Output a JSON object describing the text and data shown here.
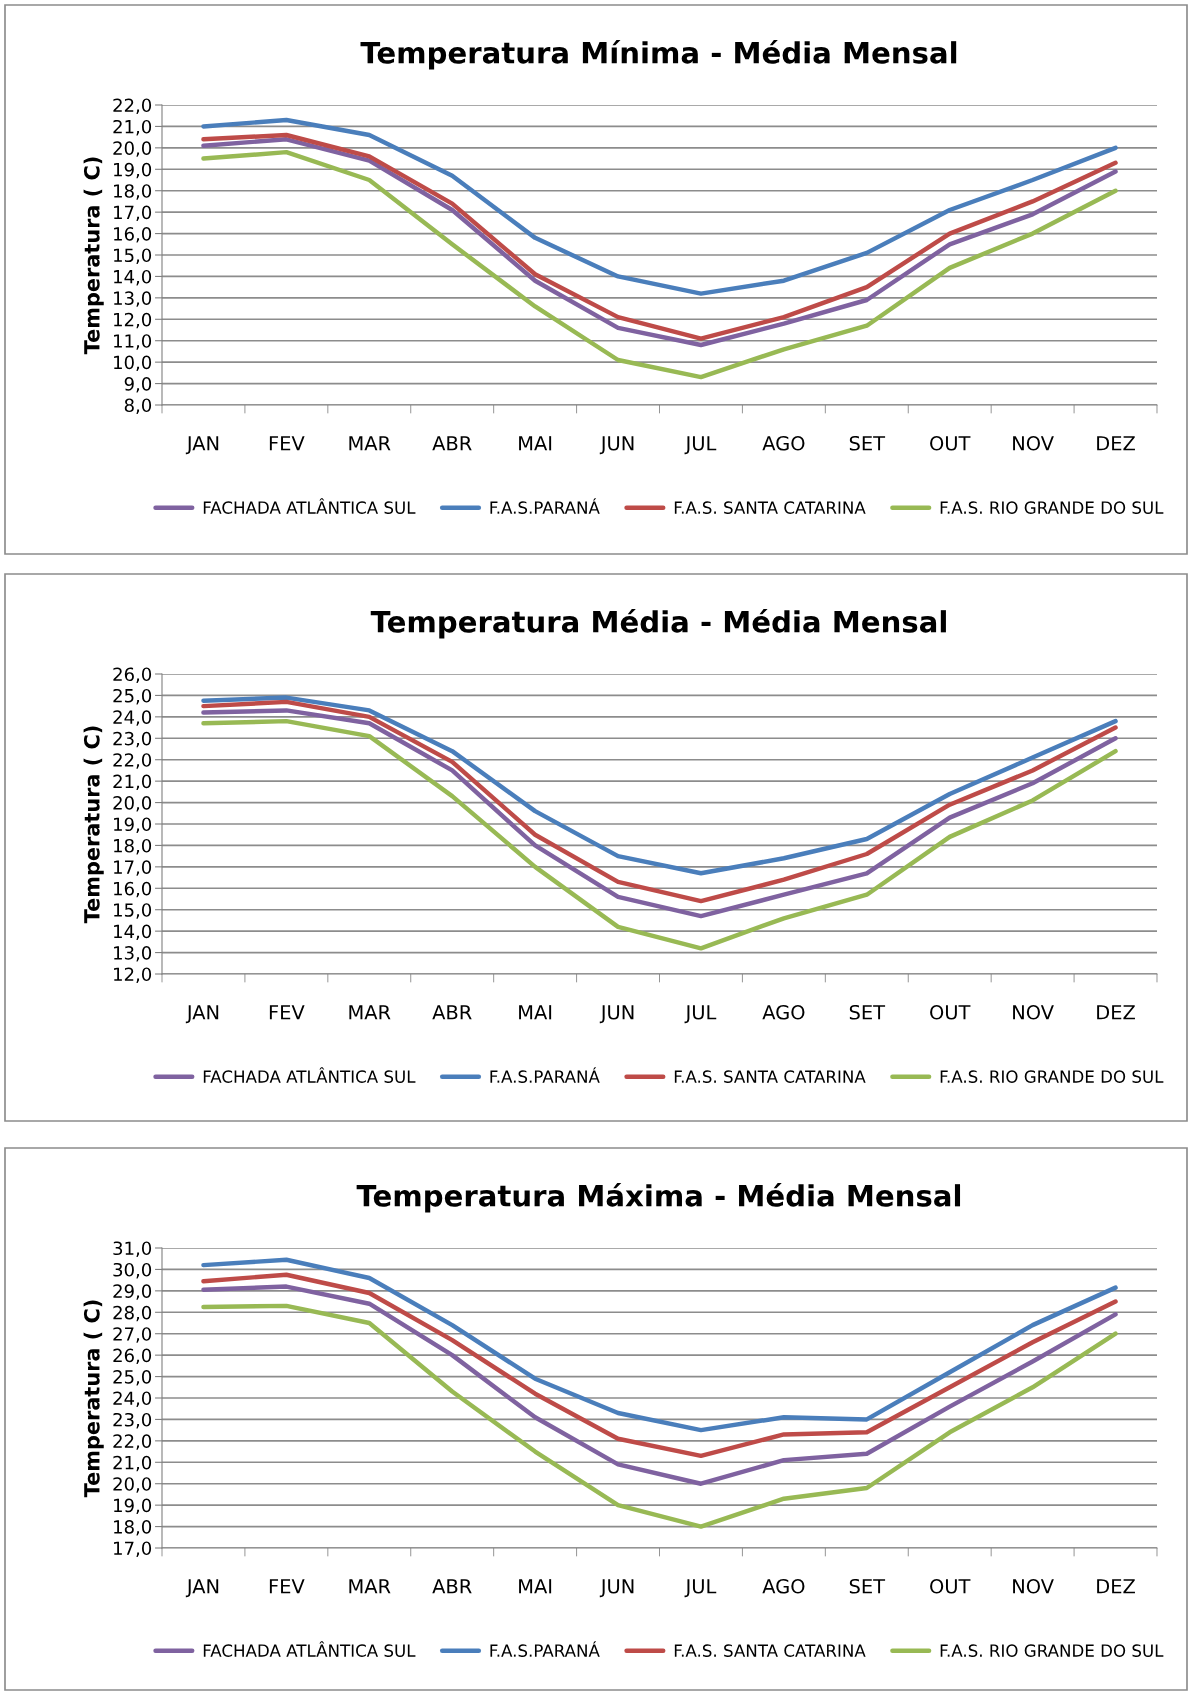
{
  "chart_data": [
    {
      "type": "line",
      "title": "Temperatura Mínima - Média Mensal",
      "ylabel": "Temperatura ( C)",
      "categories": [
        "JAN",
        "FEV",
        "MAR",
        "ABR",
        "MAI",
        "JUN",
        "JUL",
        "AGO",
        "SET",
        "OUT",
        "NOV",
        "DEZ"
      ],
      "ylim": [
        8.0,
        22.0
      ],
      "yticks": [
        {
          "value": 8,
          "label": "8,0"
        },
        {
          "value": 9,
          "label": "9,0"
        },
        {
          "value": 10,
          "label": "10,0"
        },
        {
          "value": 11,
          "label": "11,0"
        },
        {
          "value": 12,
          "label": "12,0"
        },
        {
          "value": 13,
          "label": "13,0"
        },
        {
          "value": 14,
          "label": "14,0"
        },
        {
          "value": 15,
          "label": "15,0"
        },
        {
          "value": 16,
          "label": "16,0"
        },
        {
          "value": 17,
          "label": "17,0"
        },
        {
          "value": 18,
          "label": "18,0"
        },
        {
          "value": 19,
          "label": "19,0"
        },
        {
          "value": 20,
          "label": "20,0"
        },
        {
          "value": 21,
          "label": "21,0"
        },
        {
          "value": 22,
          "label": "22,0"
        }
      ],
      "grid": "y",
      "legend": "bottom",
      "marker": "none",
      "line_style": "solid",
      "series": [
        {
          "name": "FACHADA ATLÂNTICA SUL",
          "color": "#7f62a0",
          "values": [
            20.1,
            20.4,
            19.4,
            17.1,
            13.8,
            11.6,
            10.8,
            11.8,
            12.9,
            15.5,
            16.9,
            18.9
          ]
        },
        {
          "name": "F.A.S.PARANÁ",
          "color": "#4a7ebb",
          "values": [
            21.0,
            21.3,
            20.6,
            18.7,
            15.8,
            14.0,
            13.2,
            13.8,
            15.1,
            17.1,
            18.5,
            20.0
          ]
        },
        {
          "name": "F.A.S. SANTA CATARINA",
          "color": "#be4b48",
          "values": [
            20.4,
            20.6,
            19.6,
            17.4,
            14.1,
            12.1,
            11.1,
            12.1,
            13.5,
            16.0,
            17.5,
            19.3
          ]
        },
        {
          "name": "F.A.S. RIO GRANDE DO SUL",
          "color": "#98b954",
          "values": [
            19.5,
            19.8,
            18.5,
            15.5,
            12.6,
            10.1,
            9.3,
            10.6,
            11.7,
            14.4,
            16.0,
            18.0
          ]
        }
      ]
    },
    {
      "type": "line",
      "title": "Temperatura Média - Média Mensal",
      "ylabel": "Temperatura ( C)",
      "categories": [
        "JAN",
        "FEV",
        "MAR",
        "ABR",
        "MAI",
        "JUN",
        "JUL",
        "AGO",
        "SET",
        "OUT",
        "NOV",
        "DEZ"
      ],
      "ylim": [
        12.0,
        26.0
      ],
      "yticks": [
        {
          "value": 12,
          "label": "12,0"
        },
        {
          "value": 13,
          "label": "13,0"
        },
        {
          "value": 14,
          "label": "14,0"
        },
        {
          "value": 15,
          "label": "15,0"
        },
        {
          "value": 16,
          "label": "16,0"
        },
        {
          "value": 17,
          "label": "17,0"
        },
        {
          "value": 18,
          "label": "18,0"
        },
        {
          "value": 19,
          "label": "19,0"
        },
        {
          "value": 20,
          "label": "20,0"
        },
        {
          "value": 21,
          "label": "21,0"
        },
        {
          "value": 22,
          "label": "22,0"
        },
        {
          "value": 23,
          "label": "23,0"
        },
        {
          "value": 24,
          "label": "24,0"
        },
        {
          "value": 25,
          "label": "25,0"
        },
        {
          "value": 26,
          "label": "26,0"
        }
      ],
      "grid": "y",
      "legend": "bottom",
      "marker": "none",
      "line_style": "solid",
      "series": [
        {
          "name": "FACHADA ATLÂNTICA SUL",
          "color": "#7f62a0",
          "values": [
            24.2,
            24.3,
            23.7,
            21.5,
            18.0,
            15.6,
            14.7,
            15.7,
            16.7,
            19.3,
            20.9,
            23.0
          ]
        },
        {
          "name": "F.A.S.PARANÁ",
          "color": "#4a7ebb",
          "values": [
            24.75,
            24.9,
            24.3,
            22.4,
            19.6,
            17.5,
            16.7,
            17.4,
            18.3,
            20.4,
            22.1,
            23.8
          ]
        },
        {
          "name": "F.A.S. SANTA CATARINA",
          "color": "#be4b48",
          "values": [
            24.5,
            24.7,
            24.0,
            21.9,
            18.5,
            16.3,
            15.4,
            16.4,
            17.6,
            19.9,
            21.5,
            23.5
          ]
        },
        {
          "name": "F.A.S. RIO GRANDE DO SUL",
          "color": "#98b954",
          "values": [
            23.7,
            23.8,
            23.1,
            20.3,
            17.0,
            14.2,
            13.2,
            14.6,
            15.7,
            18.4,
            20.1,
            22.4
          ]
        }
      ]
    },
    {
      "type": "line",
      "title": "Temperatura Máxima - Média Mensal",
      "ylabel": "Temperatura ( C)",
      "categories": [
        "JAN",
        "FEV",
        "MAR",
        "ABR",
        "MAI",
        "JUN",
        "JUL",
        "AGO",
        "SET",
        "OUT",
        "NOV",
        "DEZ"
      ],
      "ylim": [
        17.0,
        31.0
      ],
      "yticks": [
        {
          "value": 17,
          "label": "17,0"
        },
        {
          "value": 18,
          "label": "18,0"
        },
        {
          "value": 19,
          "label": "19,0"
        },
        {
          "value": 20,
          "label": "20,0"
        },
        {
          "value": 21,
          "label": "21,0"
        },
        {
          "value": 22,
          "label": "22,0"
        },
        {
          "value": 23,
          "label": "23,0"
        },
        {
          "value": 24,
          "label": "24,0"
        },
        {
          "value": 25,
          "label": "25,0"
        },
        {
          "value": 26,
          "label": "26,0"
        },
        {
          "value": 27,
          "label": "27,0"
        },
        {
          "value": 28,
          "label": "28,0"
        },
        {
          "value": 29,
          "label": "29,0"
        },
        {
          "value": 30,
          "label": "30,0"
        },
        {
          "value": 31,
          "label": "31,0"
        }
      ],
      "grid": "y",
      "legend": "bottom",
      "marker": "none",
      "line_style": "solid",
      "series": [
        {
          "name": "FACHADA ATLÂNTICA SUL",
          "color": "#7f62a0",
          "values": [
            29.05,
            29.2,
            28.4,
            26.0,
            23.1,
            20.9,
            20.0,
            21.1,
            21.4,
            23.6,
            25.7,
            27.9
          ]
        },
        {
          "name": "F.A.S.PARANÁ",
          "color": "#4a7ebb",
          "values": [
            30.2,
            30.45,
            29.6,
            27.4,
            24.9,
            23.3,
            22.5,
            23.1,
            23.0,
            25.2,
            27.4,
            29.15
          ]
        },
        {
          "name": "F.A.S. SANTA CATARINA",
          "color": "#be4b48",
          "values": [
            29.45,
            29.75,
            28.9,
            26.7,
            24.2,
            22.1,
            21.3,
            22.3,
            22.4,
            24.5,
            26.6,
            28.5
          ]
        },
        {
          "name": "F.A.S. RIO GRANDE DO SUL",
          "color": "#98b954",
          "values": [
            28.25,
            28.3,
            27.5,
            24.3,
            21.5,
            19.0,
            18.0,
            19.3,
            19.8,
            22.4,
            24.5,
            27.0
          ]
        }
      ]
    }
  ]
}
